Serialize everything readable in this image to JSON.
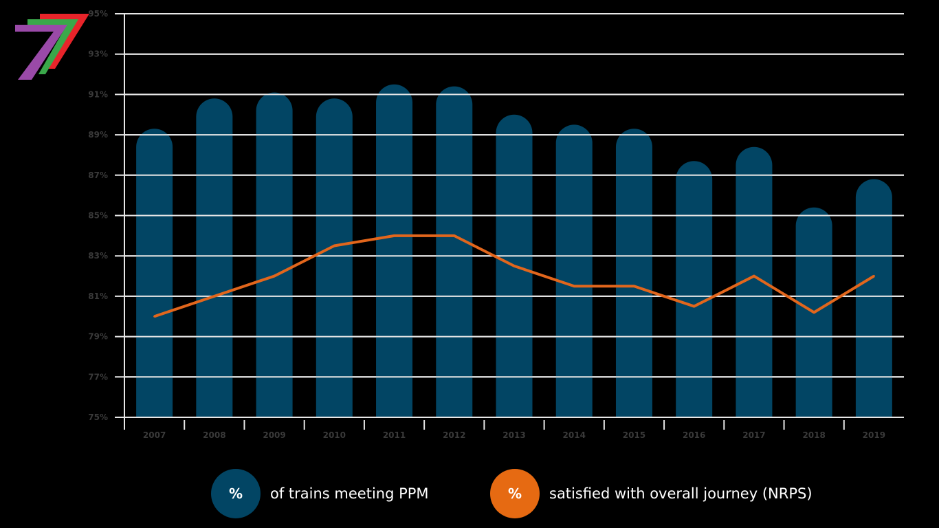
{
  "colors": {
    "background": "#000000",
    "bar": "#024564",
    "line": "#e2661c",
    "grid": "#e8e8e8",
    "tick_text": "#3a3a3a",
    "logo_red": "#e8242a",
    "logo_green": "#3aa84a",
    "logo_purple": "#9a4aa8"
  },
  "logo": {
    "icon": "chevron-seven-logo-icon"
  },
  "legend": [
    {
      "symbol": "%",
      "label": "of trains meeting PPM",
      "color": "#024564"
    },
    {
      "symbol": "%",
      "label": "satisfied with overall journey (NRPS)",
      "color": "#e66a12"
    }
  ],
  "chart_data": {
    "type": "bar",
    "categories": [
      "2007",
      "2008",
      "2009",
      "2010",
      "2011",
      "2012",
      "2013",
      "2014",
      "2015",
      "2016",
      "2017",
      "2018",
      "2019"
    ],
    "series": [
      {
        "type": "bar",
        "values": [
          89.3,
          90.8,
          91.1,
          90.8,
          91.5,
          91.4,
          90.0,
          89.5,
          89.3,
          87.7,
          88.4,
          85.4,
          86.8
        ]
      },
      {
        "type": "line",
        "values": [
          80.0,
          81.0,
          82.0,
          83.5,
          84.0,
          84.0,
          82.5,
          81.5,
          81.5,
          80.5,
          82.0,
          80.2,
          82.0
        ]
      }
    ],
    "ylim": [
      75,
      95
    ],
    "yticks": [
      "75%",
      "77%",
      "79%",
      "81%",
      "83%",
      "85%",
      "87%",
      "89%",
      "91%",
      "93%",
      "95%"
    ],
    "grid": true,
    "legend_position": "bottom"
  }
}
